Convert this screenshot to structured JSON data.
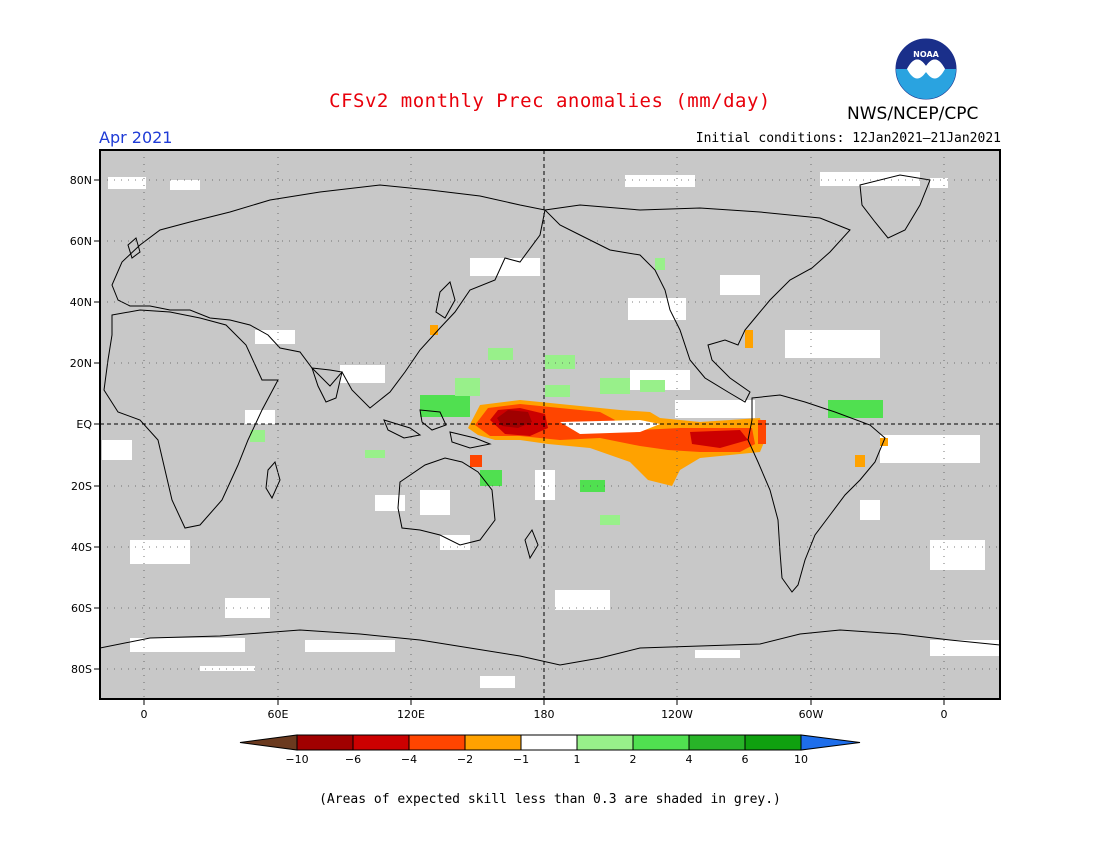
{
  "title": "CFSv2 monthly Prec anomalies (mm/day)",
  "valid_month": "Apr 2021",
  "initial_conditions": "Initial conditions: 12Jan2021–21Jan2021",
  "organization": "NWS/NCEP/CPC",
  "logo_text": "NOAA",
  "footnote": "(Areas of expected skill less than 0.3 are shaded in grey.)",
  "map": {
    "projection": "equirectangular",
    "background_color": "#c8c8c8",
    "lat_ticks": [
      "80N",
      "60N",
      "40N",
      "20N",
      "EQ",
      "20S",
      "40S",
      "60S",
      "80S"
    ],
    "lon_ticks": [
      "0",
      "60E",
      "120E",
      "180",
      "120W",
      "60W",
      "0"
    ]
  },
  "colorbar": {
    "labels": [
      "−10",
      "−6",
      "−4",
      "−2",
      "−1",
      "1",
      "2",
      "4",
      "6",
      "10"
    ],
    "colors": [
      "#6b3a1f",
      "#a00000",
      "#cc0000",
      "#ff4500",
      "#ffa200",
      "#ffffff",
      "#98f08a",
      "#50e050",
      "#28b428",
      "#0fa00f",
      "#1e6eeb"
    ]
  }
}
